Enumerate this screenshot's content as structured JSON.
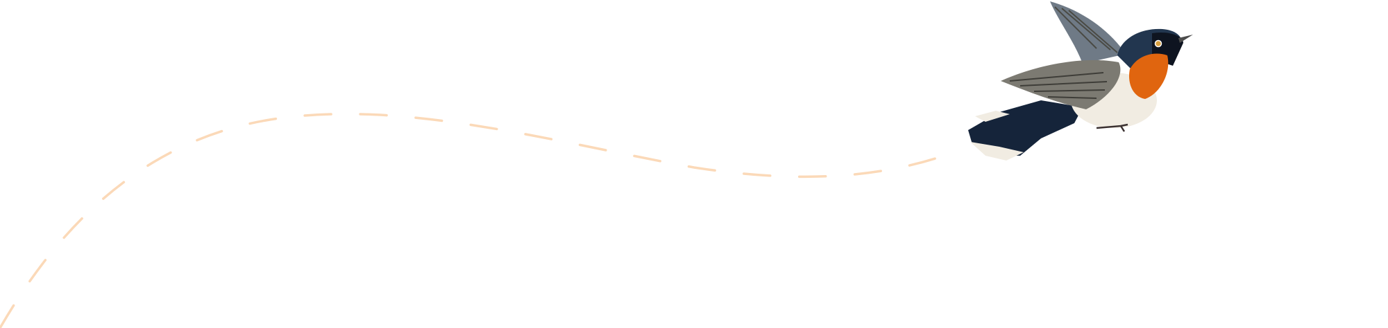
{
  "scene": {
    "background_color": "#ffffff",
    "flight_path": {
      "style": "dashed",
      "color": "#fbd9b8"
    },
    "bird": {
      "icon": "flycatcher-bird-illustration",
      "colors": {
        "head": "#22364f",
        "throat": "#e0650f",
        "belly": "#f1ece2",
        "wing": "#7c7a72",
        "tail": "#15243a"
      }
    }
  }
}
